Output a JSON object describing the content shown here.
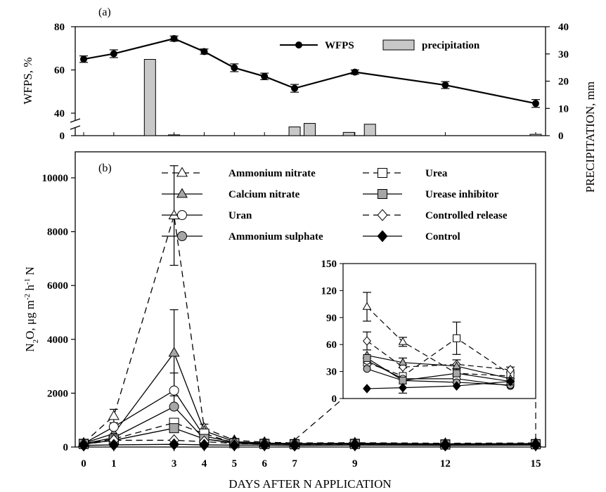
{
  "chart_data": [
    {
      "panel_label": "(a)",
      "type": "line+bar",
      "x_ticks": [
        "0",
        "1",
        "3",
        "4",
        "5",
        "6",
        "7",
        "9",
        "12",
        "15"
      ],
      "ylabel_left": "WFPS, %",
      "ylabel_right": "PRECIPITATION, mm",
      "y_left_ticks": [
        "0",
        "40",
        "60",
        "80"
      ],
      "y_right_ticks": [
        "0",
        "10",
        "20",
        "30",
        "40"
      ],
      "legend": {
        "line": "WFPS",
        "bar": "precipitation"
      },
      "wfps": {
        "x": [
          0,
          1,
          3,
          4,
          5,
          6,
          7,
          9,
          12,
          15
        ],
        "y": [
          65,
          67.5,
          74.5,
          68.5,
          61,
          57,
          51.5,
          59,
          53,
          44.5
        ],
        "err": [
          1.5,
          1.8,
          1.2,
          1.2,
          1.8,
          1.5,
          1.8,
          1.0,
          1.6,
          1.8
        ]
      },
      "precipitation": {
        "x": [
          2.2,
          3,
          7,
          7.5,
          8.8,
          9.5,
          15
        ],
        "y": [
          28,
          0.3,
          3.2,
          4.5,
          1.2,
          4.2,
          0.5
        ]
      }
    },
    {
      "panel_label": "(b)",
      "type": "line",
      "xlabel": "DAYS AFTER N APPLICATION",
      "x_ticks": [
        "0",
        "1",
        "3",
        "4",
        "5",
        "6",
        "7",
        "9",
        "12",
        "15"
      ],
      "y_ticks": [
        "0",
        "2000",
        "4000",
        "6000",
        "8000",
        "10000"
      ],
      "ylim": [
        0,
        11000
      ],
      "series": [
        {
          "name": "Ammonium nitrate",
          "marker": "triangle",
          "fill": "white",
          "dash": true,
          "x": [
            0,
            1,
            3,
            4,
            5,
            6,
            7,
            9,
            12,
            15
          ],
          "y": [
            150,
            1150,
            8600,
            700,
            250,
            180,
            150,
            160,
            140,
            150
          ],
          "err": [
            0,
            250,
            1850,
            150,
            0,
            0,
            0,
            0,
            0,
            0
          ]
        },
        {
          "name": "Calcium nitrate",
          "marker": "triangle",
          "fill": "gray",
          "dash": false,
          "x": [
            0,
            1,
            3,
            4,
            5,
            6,
            7,
            9,
            12,
            15
          ],
          "y": [
            140,
            500,
            3500,
            600,
            200,
            150,
            130,
            140,
            120,
            130
          ],
          "err": [
            0,
            0,
            1600,
            0,
            0,
            0,
            0,
            0,
            0,
            0
          ]
        },
        {
          "name": "Uran",
          "marker": "circle",
          "fill": "white",
          "dash": false,
          "x": [
            0,
            1,
            3,
            4,
            5,
            6,
            7,
            9,
            12,
            15
          ],
          "y": [
            130,
            750,
            2100,
            400,
            180,
            140,
            120,
            130,
            110,
            120
          ],
          "err": [
            0,
            0,
            650,
            0,
            0,
            0,
            0,
            0,
            0,
            0
          ]
        },
        {
          "name": "Ammonium sulphate",
          "marker": "circle",
          "fill": "gray",
          "dash": false,
          "x": [
            0,
            1,
            3,
            4,
            5,
            6,
            7,
            9,
            12,
            15
          ],
          "y": [
            120,
            350,
            1500,
            300,
            160,
            130,
            110,
            120,
            100,
            110
          ],
          "err": [
            0,
            0,
            0,
            0,
            0,
            0,
            0,
            0,
            0,
            0
          ]
        },
        {
          "name": "Urea",
          "marker": "square",
          "fill": "white",
          "dash": true,
          "x": [
            0,
            1,
            3,
            4,
            5,
            6,
            7,
            9,
            12,
            15
          ],
          "y": [
            120,
            300,
            900,
            500,
            150,
            120,
            110,
            120,
            100,
            110
          ],
          "err": [
            0,
            0,
            0,
            0,
            0,
            0,
            0,
            0,
            0,
            0
          ]
        },
        {
          "name": "Urease inhibitor",
          "marker": "square",
          "fill": "gray",
          "dash": false,
          "x": [
            0,
            1,
            3,
            4,
            5,
            6,
            7,
            9,
            12,
            15
          ],
          "y": [
            110,
            250,
            700,
            300,
            140,
            110,
            100,
            110,
            90,
            100
          ],
          "err": [
            0,
            0,
            0,
            0,
            0,
            0,
            0,
            0,
            0,
            0
          ]
        },
        {
          "name": "Controlled release",
          "marker": "diamond",
          "fill": "white",
          "dash": true,
          "x": [
            0,
            1,
            3,
            4,
            5,
            6,
            7,
            9,
            12,
            15
          ],
          "y": [
            100,
            250,
            250,
            200,
            130,
            110,
            100,
            100,
            90,
            100
          ],
          "err": [
            0,
            0,
            0,
            0,
            0,
            0,
            0,
            0,
            0,
            0
          ]
        },
        {
          "name": "Control",
          "marker": "diamond",
          "fill": "black",
          "dash": false,
          "x": [
            0,
            1,
            3,
            4,
            5,
            6,
            7,
            9,
            12,
            15
          ],
          "y": [
            60,
            80,
            100,
            80,
            70,
            70,
            60,
            70,
            60,
            70
          ],
          "err": [
            0,
            0,
            0,
            0,
            0,
            0,
            0,
            0,
            0,
            0
          ]
        }
      ],
      "inset": {
        "x_range": [
          7,
          15
        ],
        "y_ticks": [
          "0",
          "30",
          "60",
          "90",
          "120",
          "150"
        ],
        "ylim": [
          0,
          150
        ],
        "series": [
          {
            "name": "Ammonium nitrate",
            "x": [
              7,
              9,
              12,
              15
            ],
            "y": [
              102,
              63,
              28,
              25
            ],
            "err": [
              16,
              5,
              0,
              0
            ]
          },
          {
            "name": "Urea",
            "x": [
              7,
              9,
              12,
              15
            ],
            "y": [
              40,
              25,
              67,
              27
            ],
            "err": [
              0,
              0,
              18,
              0
            ]
          },
          {
            "name": "Controlled release",
            "x": [
              7,
              9,
              12,
              15
            ],
            "y": [
              64,
              35,
              38,
              32
            ],
            "err": [
              10,
              0,
              5,
              3
            ]
          },
          {
            "name": "Calcium nitrate",
            "x": [
              7,
              9,
              12,
              15
            ],
            "y": [
              48,
              40,
              36,
              22
            ],
            "err": [
              0,
              5,
              0,
              0
            ]
          },
          {
            "name": "Uran",
            "x": [
              7,
              9,
              12,
              15
            ],
            "y": [
              42,
              22,
              22,
              14
            ],
            "err": [
              0,
              0,
              0,
              0
            ]
          },
          {
            "name": "Ammonium sulphate",
            "x": [
              7,
              9,
              12,
              15
            ],
            "y": [
              33,
              20,
              18,
              15
            ],
            "err": [
              0,
              0,
              0,
              0
            ]
          },
          {
            "name": "Urease inhibitor",
            "x": [
              7,
              9,
              12,
              15
            ],
            "y": [
              45,
              20,
              28,
              19
            ],
            "err": [
              0,
              14,
              0,
              0
            ]
          },
          {
            "name": "Control",
            "x": [
              7,
              9,
              12,
              15
            ],
            "y": [
              11,
              12,
              14,
              19
            ],
            "err": [
              0,
              0,
              0,
              0
            ]
          }
        ]
      }
    }
  ]
}
